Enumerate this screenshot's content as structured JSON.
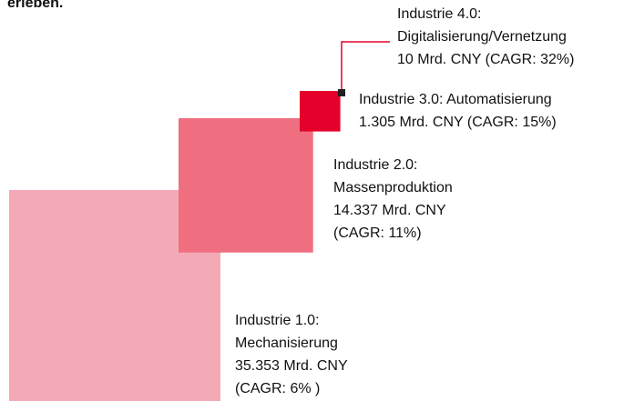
{
  "chart_data": {
    "type": "square-area",
    "title": "erleben.",
    "series": [
      {
        "name": [
          "Industrie 1.0:",
          "Mechanisierung"
        ],
        "values": 35353,
        "value_labels": "35.353 Mrd. CNY",
        "cagr": 6,
        "cagr_label": "(CAGR: 6% )",
        "color": "#f4aab6"
      },
      {
        "name": [
          "Industrie 2.0:",
          "Massenproduktion"
        ],
        "values": 14337,
        "value_labels": "14.337 Mrd. CNY",
        "cagr": 11,
        "cagr_label": "(CAGR: 11%)",
        "color": "#ef6f81"
      },
      {
        "name": [
          "Industrie 3.0: Automatisierung"
        ],
        "values": 1305,
        "value_labels": "1.305 Mrd. CNY",
        "cagr": 15,
        "cagr_label": "(CAGR: 15%)",
        "color": "#e4002b"
      },
      {
        "name": [
          "Industrie 4.0:",
          "Digitalisierung/Vernetzung"
        ],
        "values": 10,
        "value_labels": "10 Mrd. CNY",
        "cagr": 32,
        "cagr_label": "(CAGR: 32%)",
        "color": "#231f20"
      }
    ]
  }
}
